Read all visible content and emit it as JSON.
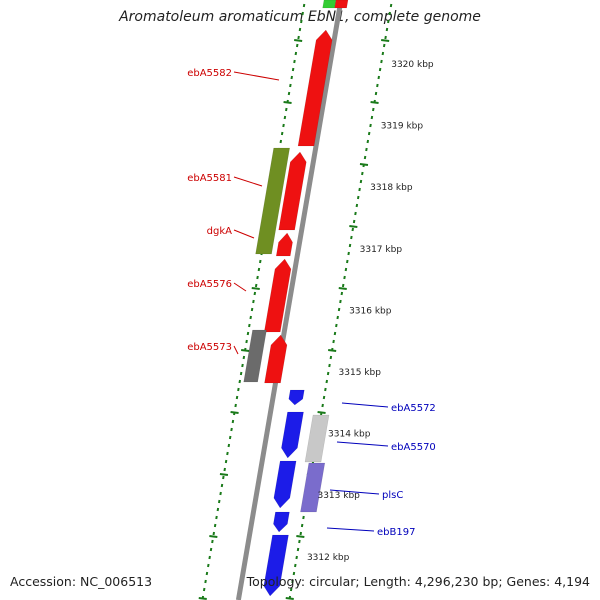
{
  "title": "Aromatoleum aromaticum EbN1, complete genome",
  "footer": {
    "accession": "Accession: NC_006513",
    "summary": "Topology: circular; Length: 4,296,230 bp; Genes: 4,194"
  },
  "colors": {
    "backbone": "#8c8c8c",
    "tick_dots": "#1a7a1a",
    "red_gene": "#ee1111",
    "olive_gene": "#6f8f22",
    "gray_gene": "#6b6b6b",
    "blue_gene": "#1c1ce8",
    "light_gray_gene": "#c8c8c8",
    "purple_gene": "#7a6ccc",
    "green_gene": "#33cc33",
    "red_label": "#cc0000",
    "blue_label": "#0000bb"
  },
  "scale_labels": [
    "3320 kbp",
    "3319 kbp",
    "3318 kbp",
    "3317 kbp",
    "3316 kbp",
    "3315 kbp",
    "3314 kbp",
    "3313 kbp",
    "3312 kbp"
  ],
  "gene_labels_left": [
    "ebA5582",
    "ebA5581",
    "dgkA",
    "ebA5576",
    "ebA5573"
  ],
  "gene_labels_right": [
    "ebA5572",
    "ebA5570",
    "plsC",
    "ebB197"
  ]
}
